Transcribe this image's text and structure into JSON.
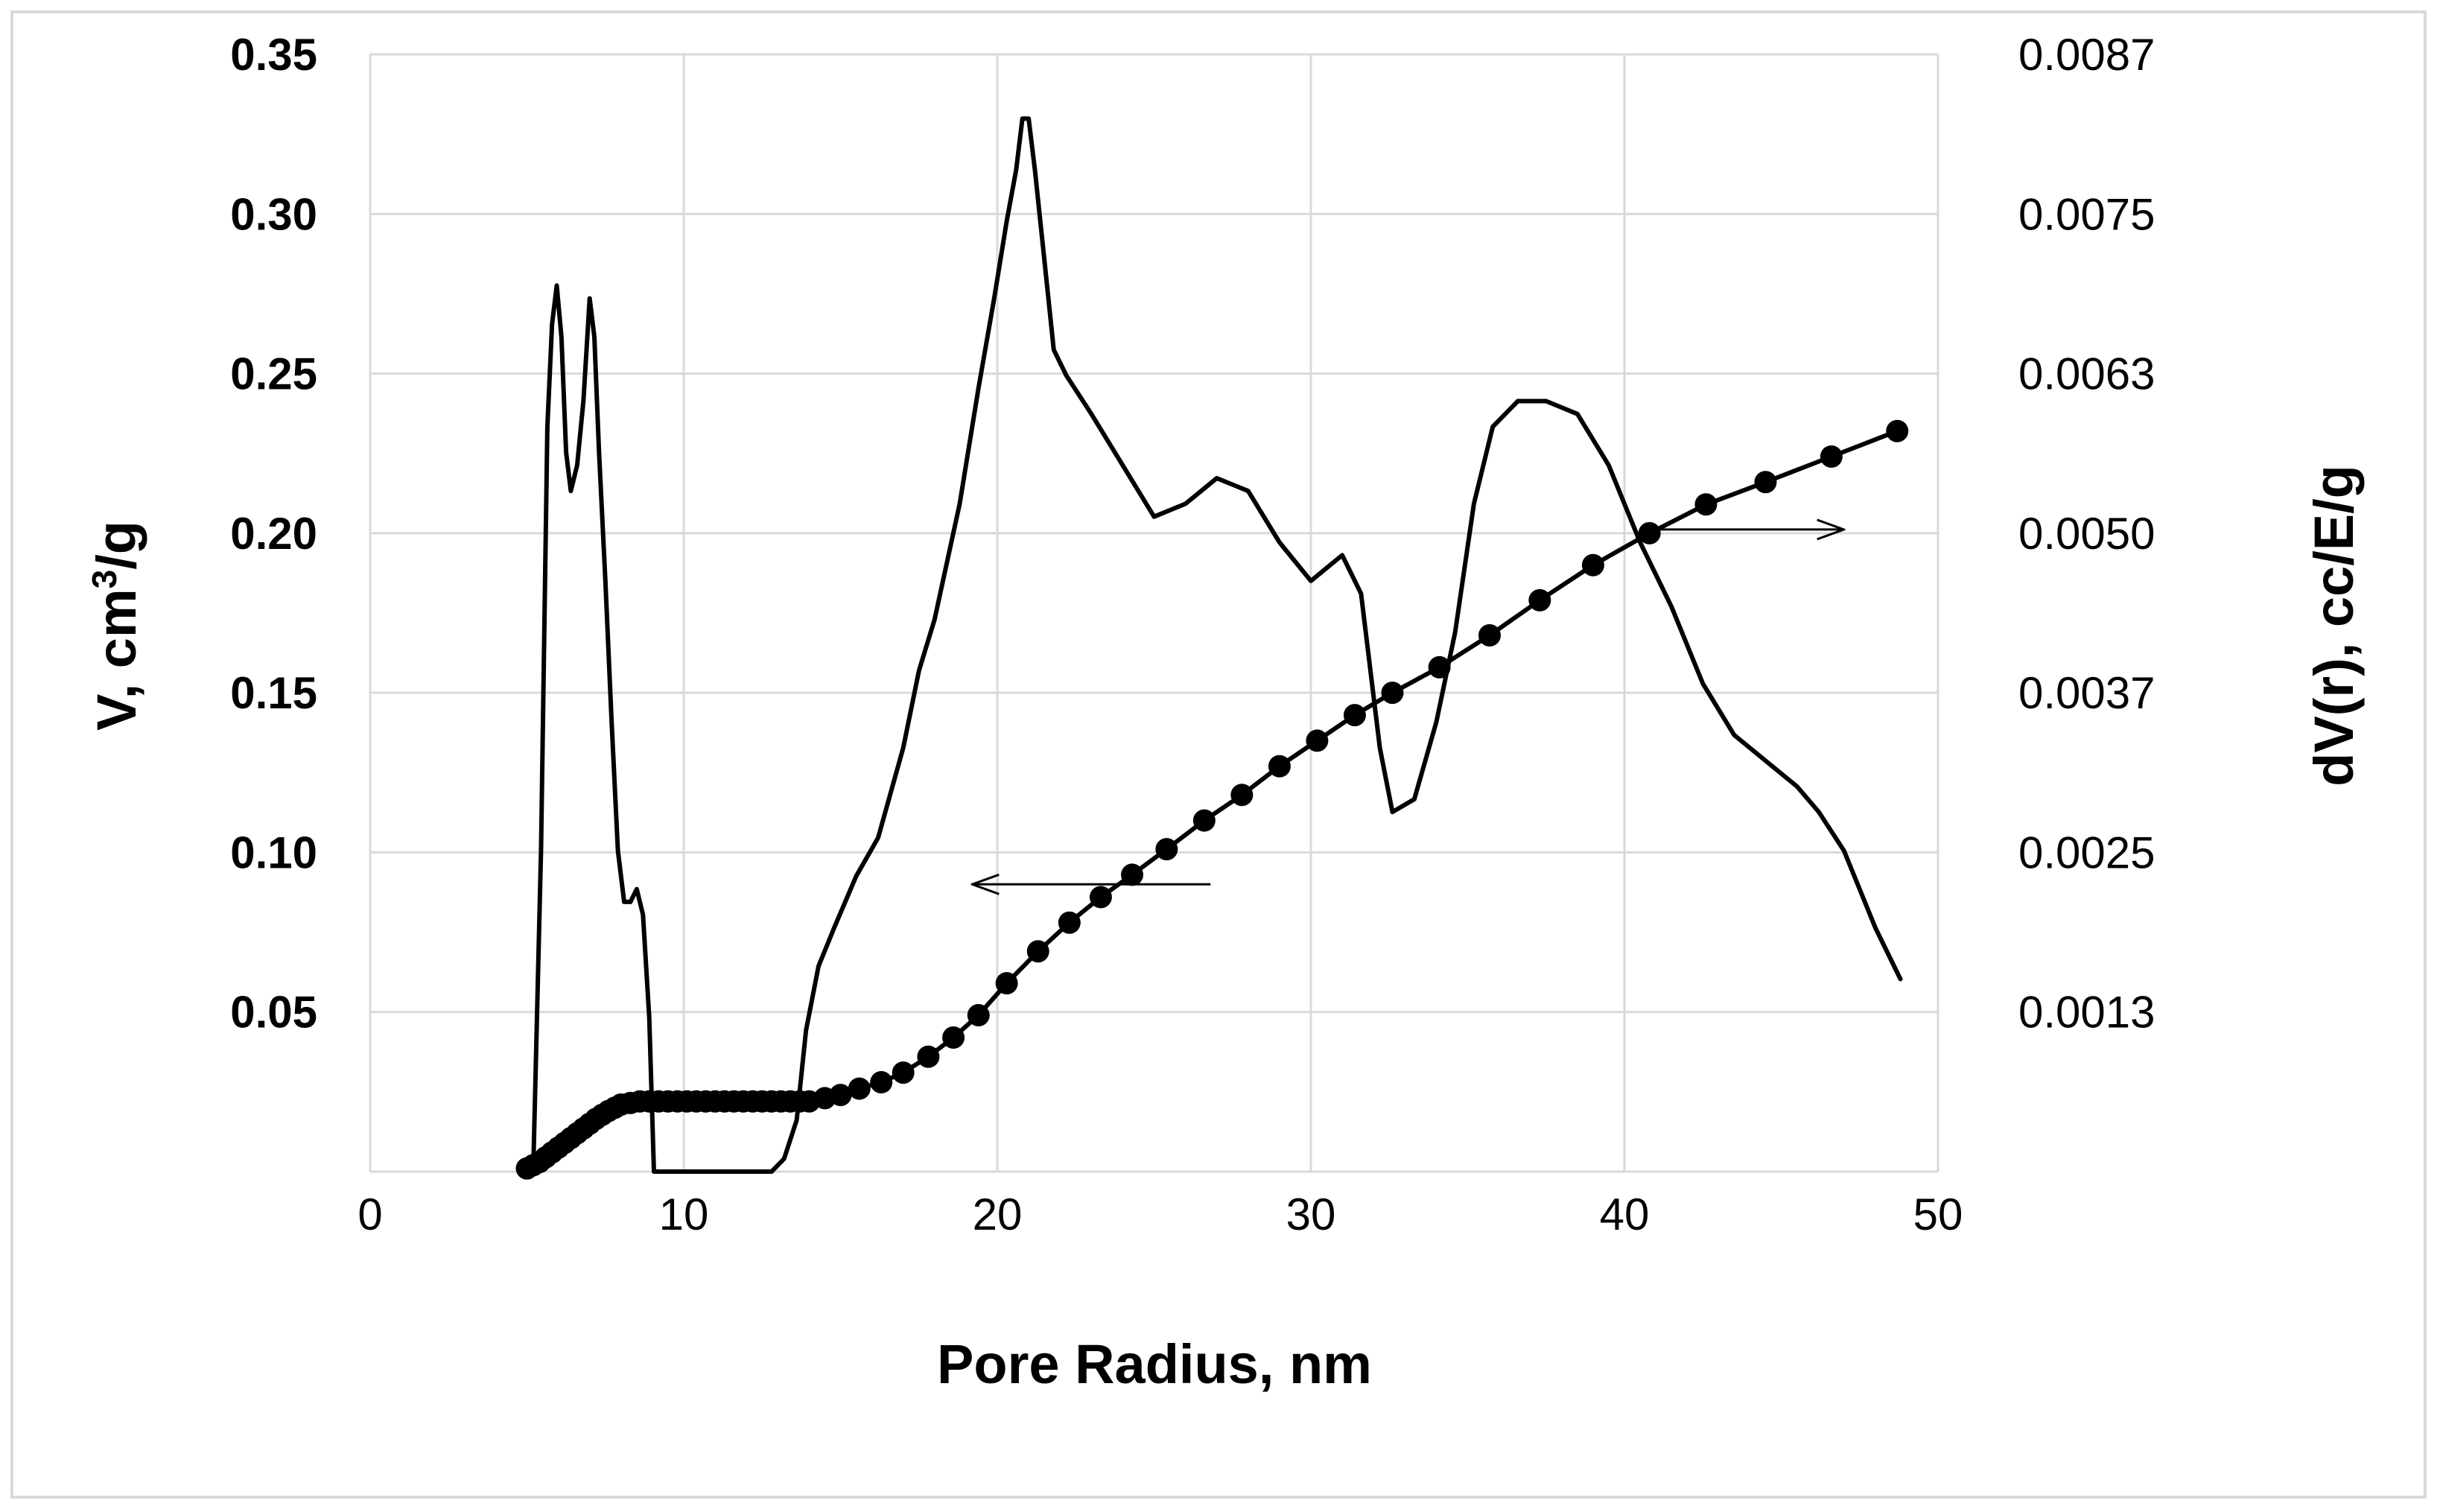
{
  "chart_data": {
    "type": "line",
    "title": "",
    "xlabel": "Pore Radius, nm",
    "ylabel_left": {
      "prefix": "V, cm",
      "sup": "3",
      "suffix": "/g"
    },
    "ylabel_right": "dV(r), cc/E/g",
    "xlim": [
      0,
      50
    ],
    "ylim_left": [
      0,
      0.35
    ],
    "ylim_right": [
      0,
      0.0087
    ],
    "grid": "horizontal and vertical gridlines",
    "x_ticks": [
      "0",
      "10",
      "20",
      "30",
      "40",
      "50"
    ],
    "y_ticks_left": [
      "0.35",
      "0.30",
      "0.25",
      "0.20",
      "0.15",
      "0.10",
      "0.05"
    ],
    "y_ticks_right": [
      "0.0087",
      "0.0075",
      "0.0063",
      "0.0050",
      "0.0037",
      "0.0025",
      "0.0013"
    ],
    "annotations": [
      {
        "type": "arrow",
        "direction": "left",
        "points_to": "left axis",
        "from": [
          26.8,
          0.09
        ],
        "to": [
          19.2,
          0.09
        ]
      },
      {
        "type": "arrow",
        "direction": "right",
        "points_to": "right axis",
        "from": [
          40.8,
          0.005
        ],
        "to": [
          47.0,
          0.005
        ]
      }
    ],
    "series": [
      {
        "axis": "left",
        "style": "line with circle markers",
        "x": [
          5.0,
          5.2,
          5.4,
          5.6,
          5.8,
          6.0,
          6.2,
          6.4,
          6.6,
          6.8,
          7.0,
          7.2,
          7.4,
          7.6,
          7.8,
          8.0,
          8.3,
          8.6,
          8.9,
          9.2,
          9.5,
          9.8,
          10.1,
          10.4,
          10.7,
          11.0,
          11.3,
          11.6,
          11.9,
          12.2,
          12.5,
          12.8,
          13.1,
          13.4,
          13.7,
          14.0,
          14.5,
          15.0,
          15.6,
          16.3,
          17.0,
          17.8,
          18.6,
          19.4,
          20.3,
          21.3,
          22.3,
          23.3,
          24.3,
          25.4,
          26.6,
          27.8,
          29.0,
          30.2,
          31.4,
          32.6,
          34.1,
          35.7,
          37.3,
          39.0,
          40.8,
          42.6,
          44.5,
          46.6,
          48.7
        ],
        "y": [
          0.001,
          0.002,
          0.003,
          0.0045,
          0.006,
          0.0075,
          0.009,
          0.0105,
          0.012,
          0.0135,
          0.015,
          0.0165,
          0.0178,
          0.019,
          0.02,
          0.021,
          0.0215,
          0.022,
          0.022,
          0.022,
          0.022,
          0.022,
          0.022,
          0.022,
          0.022,
          0.022,
          0.022,
          0.022,
          0.022,
          0.022,
          0.022,
          0.022,
          0.022,
          0.022,
          0.022,
          0.022,
          0.023,
          0.024,
          0.026,
          0.028,
          0.031,
          0.036,
          0.042,
          0.049,
          0.059,
          0.069,
          0.078,
          0.086,
          0.093,
          0.101,
          0.11,
          0.118,
          0.127,
          0.135,
          0.143,
          0.15,
          0.158,
          0.168,
          0.179,
          0.19,
          0.2,
          0.209,
          0.216,
          0.224,
          0.232
        ]
      },
      {
        "axis": "right",
        "style": "line",
        "x": [
          4.9,
          5.2,
          5.45,
          5.65,
          5.8,
          5.95,
          6.1,
          6.25,
          6.4,
          6.6,
          6.8,
          7.0,
          7.15,
          7.3,
          7.5,
          7.7,
          7.9,
          8.1,
          8.3,
          8.5,
          8.7,
          8.9,
          9.05,
          9.2,
          9.4,
          10.0,
          11.0,
          12.0,
          12.8,
          13.2,
          13.6,
          13.9,
          14.3,
          14.8,
          15.5,
          16.2,
          17.0,
          17.5,
          18.0,
          18.8,
          19.4,
          19.9,
          20.3,
          20.6,
          20.8,
          21.0,
          21.2,
          21.5,
          21.8,
          22.2,
          23.0,
          24.0,
          25.0,
          26.0,
          27.0,
          28.0,
          29.0,
          30.0,
          31.0,
          31.6,
          32.2,
          32.6,
          33.3,
          34.0,
          34.6,
          35.2,
          35.8,
          36.6,
          37.5,
          38.5,
          39.5,
          40.5,
          41.5,
          42.5,
          43.5,
          44.5,
          45.5,
          46.2,
          47.0,
          48.0,
          48.8
        ],
        "y": [
          0.0,
          0.0,
          0.0025,
          0.0058,
          0.0066,
          0.0069,
          0.0065,
          0.0056,
          0.0053,
          0.0055,
          0.006,
          0.0068,
          0.0065,
          0.0056,
          0.0046,
          0.0035,
          0.0025,
          0.0021,
          0.0021,
          0.0022,
          0.002,
          0.0012,
          0.0,
          0.0,
          0.0,
          0.0,
          0.0,
          0.0,
          0.0,
          0.0001,
          0.0004,
          0.0011,
          0.0016,
          0.0019,
          0.0023,
          0.0026,
          0.0033,
          0.0039,
          0.0043,
          0.0052,
          0.0061,
          0.0068,
          0.0074,
          0.0078,
          0.0082,
          0.0082,
          0.0078,
          0.0071,
          0.0064,
          0.0062,
          0.0059,
          0.0055,
          0.0051,
          0.0052,
          0.0054,
          0.0053,
          0.0049,
          0.0046,
          0.0048,
          0.0045,
          0.0033,
          0.0028,
          0.0029,
          0.0035,
          0.0042,
          0.0052,
          0.0058,
          0.006,
          0.006,
          0.0059,
          0.0055,
          0.0049,
          0.0044,
          0.0038,
          0.0034,
          0.0032,
          0.003,
          0.0028,
          0.0025,
          0.0019,
          0.0015
        ]
      }
    ]
  }
}
